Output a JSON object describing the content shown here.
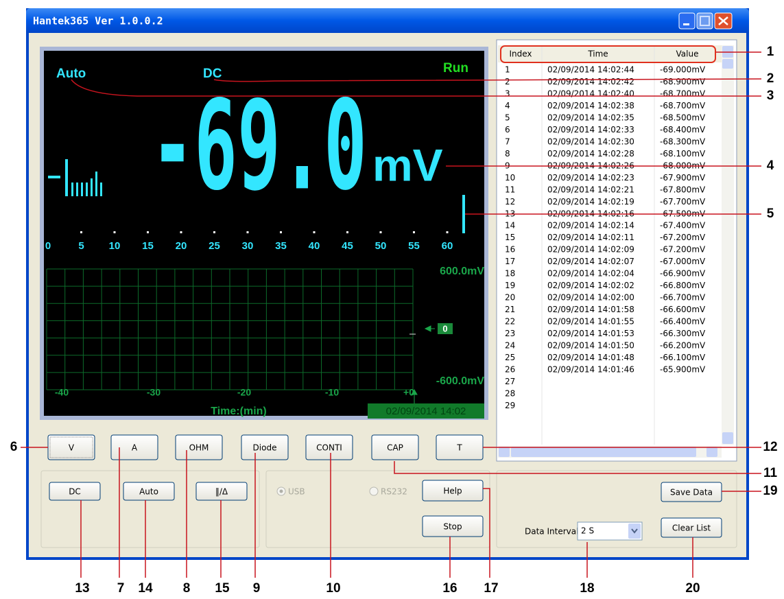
{
  "window": {
    "title": "Hantek365 Ver 1.0.0.2"
  },
  "display": {
    "range_mode": "Auto",
    "coupling": "DC",
    "status": "Run",
    "reading": "-69.0",
    "unit": "mV",
    "bar_scale": [
      "0",
      "5",
      "10",
      "15",
      "20",
      "25",
      "30",
      "35",
      "40",
      "45",
      "50",
      "55",
      "60"
    ],
    "trend": {
      "y_max": "600.0mV",
      "y_min": "-600.0mV",
      "zero_marker": "0",
      "x_labels": [
        "-40",
        "-30",
        "-20",
        "-10",
        "+0"
      ],
      "x_title": "Time:(min)",
      "timestamp": "02/09/2014 14:02"
    }
  },
  "table": {
    "columns": [
      "Index",
      "Time",
      "Value"
    ],
    "rows": [
      [
        "1",
        "02/09/2014 14:02:44",
        "-69.000mV"
      ],
      [
        "2",
        "02/09/2014 14:02:42",
        "-68.900mV"
      ],
      [
        "3",
        "02/09/2014 14:02:40",
        "-68.700mV"
      ],
      [
        "4",
        "02/09/2014 14:02:38",
        "-68.700mV"
      ],
      [
        "5",
        "02/09/2014 14:02:35",
        "-68.500mV"
      ],
      [
        "6",
        "02/09/2014 14:02:33",
        "-68.400mV"
      ],
      [
        "7",
        "02/09/2014 14:02:30",
        "-68.300mV"
      ],
      [
        "8",
        "02/09/2014 14:02:28",
        "-68.100mV"
      ],
      [
        "9",
        "02/09/2014 14:02:26",
        "-68.000mV"
      ],
      [
        "10",
        "02/09/2014 14:02:23",
        "-67.900mV"
      ],
      [
        "11",
        "02/09/2014 14:02:21",
        "-67.800mV"
      ],
      [
        "12",
        "02/09/2014 14:02:19",
        "-67.700mV"
      ],
      [
        "13",
        "02/09/2014 14:02:16",
        "-67.500mV"
      ],
      [
        "14",
        "02/09/2014 14:02:14",
        "-67.400mV"
      ],
      [
        "15",
        "02/09/2014 14:02:11",
        "-67.200mV"
      ],
      [
        "16",
        "02/09/2014 14:02:09",
        "-67.200mV"
      ],
      [
        "17",
        "02/09/2014 14:02:07",
        "-67.000mV"
      ],
      [
        "18",
        "02/09/2014 14:02:04",
        "-66.900mV"
      ],
      [
        "19",
        "02/09/2014 14:02:02",
        "-66.800mV"
      ],
      [
        "20",
        "02/09/2014 14:02:00",
        "-66.700mV"
      ],
      [
        "21",
        "02/09/2014 14:01:58",
        "-66.600mV"
      ],
      [
        "22",
        "02/09/2014 14:01:55",
        "-66.400mV"
      ],
      [
        "23",
        "02/09/2014 14:01:53",
        "-66.300mV"
      ],
      [
        "24",
        "02/09/2014 14:01:50",
        "-66.200mV"
      ],
      [
        "25",
        "02/09/2014 14:01:48",
        "-66.100mV"
      ],
      [
        "26",
        "02/09/2014 14:01:46",
        "-65.900mV"
      ],
      [
        "27"
      ],
      [
        "28"
      ],
      [
        "29"
      ]
    ]
  },
  "mode_buttons": [
    "V",
    "A",
    "OHM",
    "Diode",
    "CONTI",
    "CAP",
    "T"
  ],
  "function_buttons": [
    "DC",
    "Auto",
    "‖/Δ"
  ],
  "port": {
    "options": [
      "USB",
      "RS232"
    ]
  },
  "control_buttons": [
    "Help",
    "Stop"
  ],
  "logging": {
    "interval_label": "Data Interval",
    "interval_value": "2 S",
    "buttons": [
      "Save Data",
      "Clear List"
    ]
  },
  "callouts": [
    "1",
    "2",
    "3",
    "4",
    "5",
    "6",
    "7",
    "8",
    "9",
    "10",
    "11",
    "12",
    "13",
    "14",
    "15",
    "16",
    "17",
    "18",
    "19",
    "20"
  ]
}
